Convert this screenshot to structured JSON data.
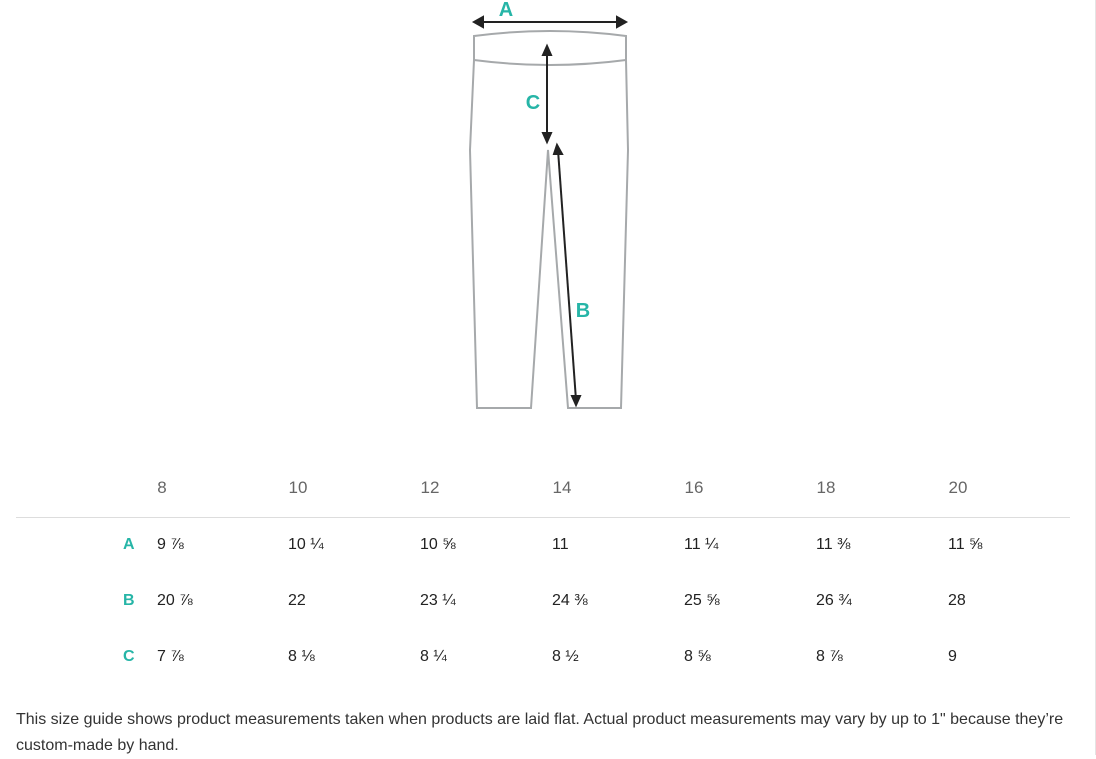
{
  "diagram": {
    "labels": [
      "A",
      "B",
      "C"
    ],
    "accent": "#26b5a7",
    "outline": "#a6a9ab"
  },
  "sizes": [
    "8",
    "10",
    "12",
    "14",
    "16",
    "18",
    "20"
  ],
  "rows": [
    {
      "label": "A",
      "values": [
        "9 ⅞",
        "10 ¼",
        "10 ⅝",
        "11",
        "11 ¼",
        "11 ⅜",
        "11 ⅝"
      ]
    },
    {
      "label": "B",
      "values": [
        "20 ⅞",
        "22",
        "23 ¼",
        "24 ⅜",
        "25 ⅝",
        "26 ¾",
        "28"
      ]
    },
    {
      "label": "C",
      "values": [
        "7 ⅞",
        "8 ⅛",
        "8 ¼",
        "8 ½",
        "8 ⅝",
        "8 ⅞",
        "9"
      ]
    }
  ],
  "note": "This size guide shows product measurements taken when products are laid flat. Actual product measurements may vary by up to 1\" because they’re custom-made by hand."
}
